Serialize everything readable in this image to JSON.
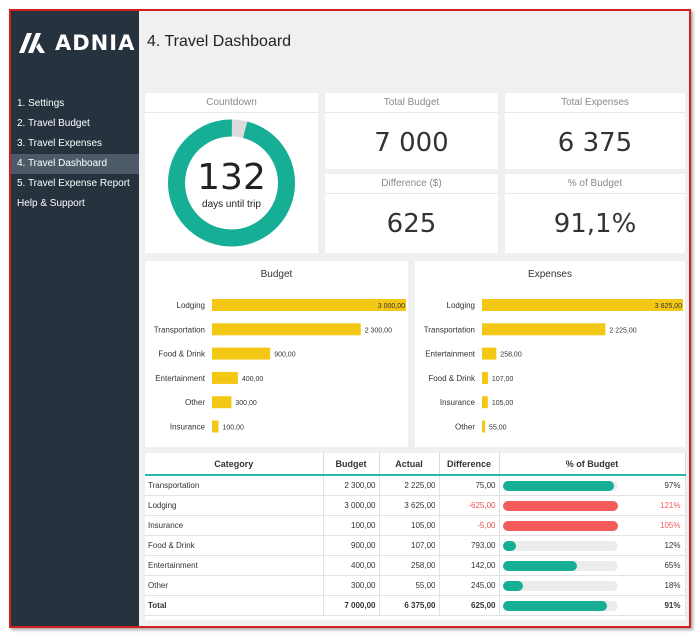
{
  "app": {
    "logo_text": "ADNIA"
  },
  "sidebar": {
    "items": [
      {
        "label": "1. Settings",
        "active": false
      },
      {
        "label": "2. Travel Budget",
        "active": false
      },
      {
        "label": "3. Travel Expenses",
        "active": false
      },
      {
        "label": "4. Travel Dashboard",
        "active": true
      },
      {
        "label": "5. Travel Expense Report",
        "active": false
      },
      {
        "label": "Help & Support",
        "active": false
      }
    ]
  },
  "header": {
    "title": "4. Travel Dashboard"
  },
  "kpis": {
    "countdown": {
      "title": "Countdown",
      "value": "132",
      "label": "days until trip",
      "fraction": 0.96
    },
    "total_budget": {
      "title": "Total Budget",
      "value": "7 000"
    },
    "total_expenses": {
      "title": "Total Expenses",
      "value": "6 375"
    },
    "difference": {
      "title": "Difference ($)",
      "value": "625"
    },
    "pct_budget": {
      "title": "% of Budget",
      "value": "91,1%"
    }
  },
  "colors": {
    "teal": "#17ae96",
    "gold": "#f2c814",
    "red": "#f45b5b",
    "ring_bg": "#dcdcdc"
  },
  "chart_data": [
    {
      "type": "bar",
      "orientation": "horizontal",
      "title": "Budget",
      "categories": [
        "Lodging",
        "Transportation",
        "Food & Drink",
        "Entertainment",
        "Other",
        "Insurance"
      ],
      "values": [
        3000,
        2300,
        900,
        400,
        300,
        100
      ],
      "value_labels": [
        "3 000,00",
        "2 300,00",
        "900,00",
        "400,00",
        "300,00",
        "100,00"
      ],
      "xlim": [
        0,
        3000
      ]
    },
    {
      "type": "bar",
      "orientation": "horizontal",
      "title": "Expenses",
      "categories": [
        "Lodging",
        "Transportation",
        "Entertainment",
        "Food & Drink",
        "Insurance",
        "Other"
      ],
      "values": [
        3625,
        2225,
        258,
        107,
        105,
        55
      ],
      "value_labels": [
        "3 625,00",
        "2 225,00",
        "258,00",
        "107,00",
        "105,00",
        "55,00"
      ],
      "xlim": [
        0,
        3625
      ]
    }
  ],
  "table": {
    "headers": [
      "Category",
      "Budget",
      "Actual",
      "Difference",
      "% of Budget"
    ],
    "rows": [
      {
        "category": "Transportation",
        "budget": "2 300,00",
        "actual": "2 225,00",
        "difference": "75,00",
        "pct_label": "97%",
        "pct": 0.97,
        "over": false
      },
      {
        "category": "Lodging",
        "budget": "3 000,00",
        "actual": "3 625,00",
        "difference": "-625,00",
        "pct_label": "121%",
        "pct": 1.21,
        "over": true
      },
      {
        "category": "Insurance",
        "budget": "100,00",
        "actual": "105,00",
        "difference": "-5,00",
        "pct_label": "105%",
        "pct": 1.05,
        "over": true
      },
      {
        "category": "Food & Drink",
        "budget": "900,00",
        "actual": "107,00",
        "difference": "793,00",
        "pct_label": "12%",
        "pct": 0.12,
        "over": false
      },
      {
        "category": "Entertainment",
        "budget": "400,00",
        "actual": "258,00",
        "difference": "142,00",
        "pct_label": "65%",
        "pct": 0.65,
        "over": false
      },
      {
        "category": "Other",
        "budget": "300,00",
        "actual": "55,00",
        "difference": "245,00",
        "pct_label": "18%",
        "pct": 0.18,
        "over": false
      }
    ],
    "total": {
      "category": "Total",
      "budget": "7 000,00",
      "actual": "6 375,00",
      "difference": "625,00",
      "pct_label": "91%",
      "pct": 0.91
    }
  }
}
